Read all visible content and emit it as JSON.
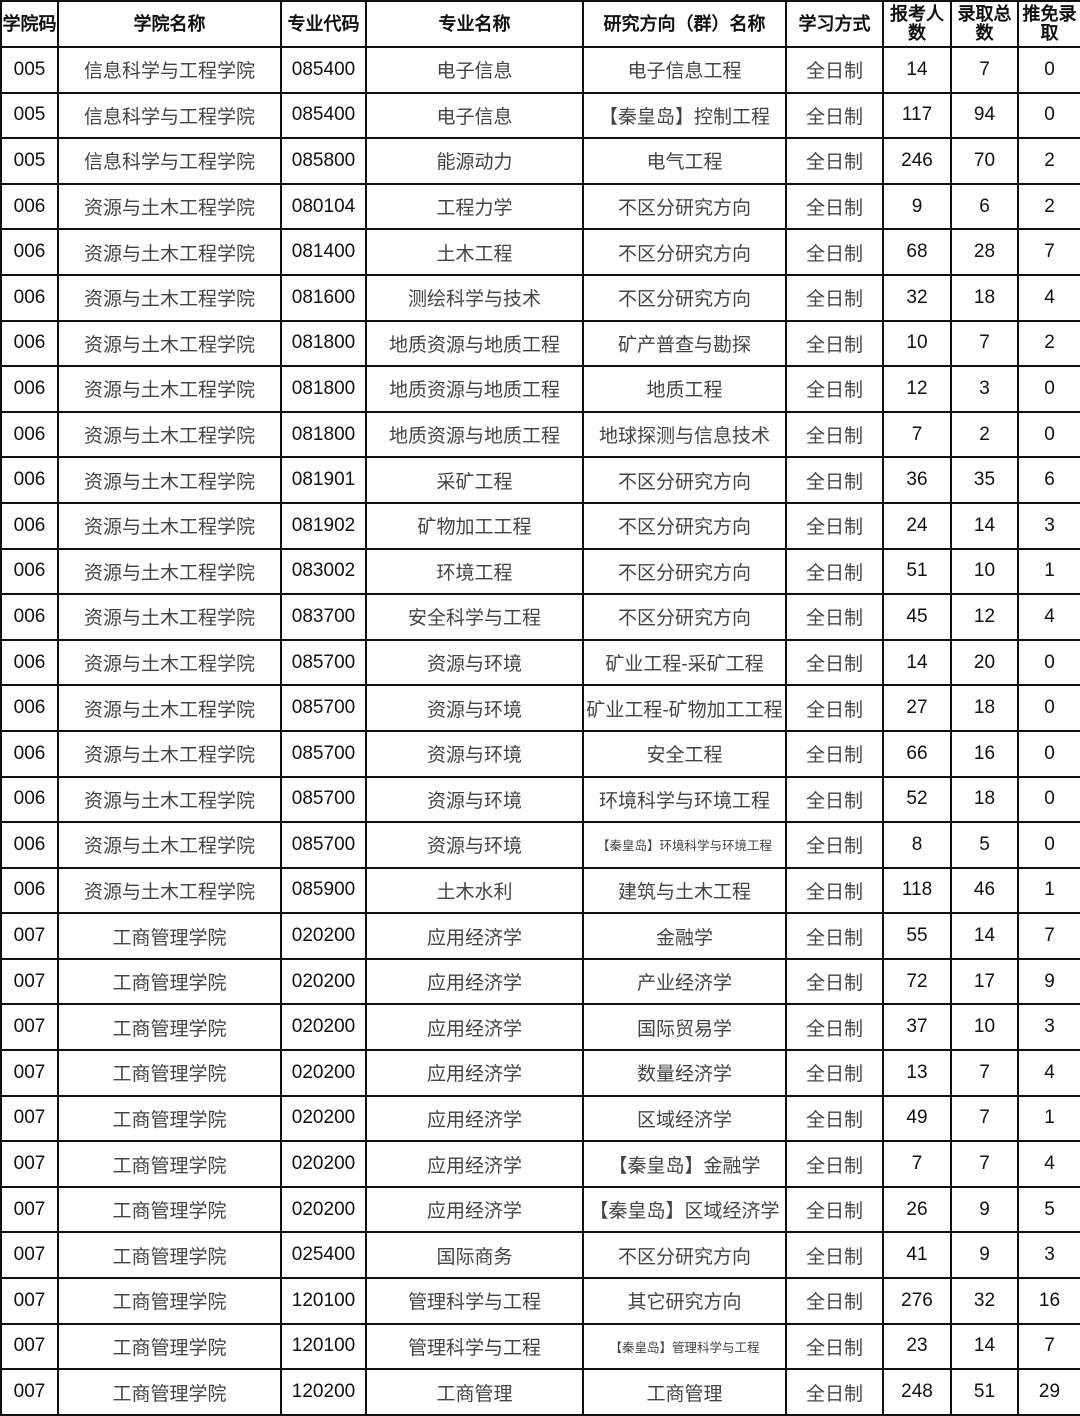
{
  "headers": [
    "学院码",
    "学院名称",
    "专业代码",
    "专业名称",
    "研究方向（群）名称",
    "学习方式",
    "报考人数",
    "录取总数",
    "推免录取"
  ],
  "rows": [
    [
      "005",
      "信息科学与工程学院",
      "085400",
      "电子信息",
      "电子信息工程",
      "全日制",
      "14",
      "7",
      "0"
    ],
    [
      "005",
      "信息科学与工程学院",
      "085400",
      "电子信息",
      "【秦皇岛】控制工程",
      "全日制",
      "117",
      "94",
      "0"
    ],
    [
      "005",
      "信息科学与工程学院",
      "085800",
      "能源动力",
      "电气工程",
      "全日制",
      "246",
      "70",
      "2"
    ],
    [
      "006",
      "资源与土木工程学院",
      "080104",
      "工程力学",
      "不区分研究方向",
      "全日制",
      "9",
      "6",
      "2"
    ],
    [
      "006",
      "资源与土木工程学院",
      "081400",
      "土木工程",
      "不区分研究方向",
      "全日制",
      "68",
      "28",
      "7"
    ],
    [
      "006",
      "资源与土木工程学院",
      "081600",
      "测绘科学与技术",
      "不区分研究方向",
      "全日制",
      "32",
      "18",
      "4"
    ],
    [
      "006",
      "资源与土木工程学院",
      "081800",
      "地质资源与地质工程",
      "矿产普查与勘探",
      "全日制",
      "10",
      "7",
      "2"
    ],
    [
      "006",
      "资源与土木工程学院",
      "081800",
      "地质资源与地质工程",
      "地质工程",
      "全日制",
      "12",
      "3",
      "0"
    ],
    [
      "006",
      "资源与土木工程学院",
      "081800",
      "地质资源与地质工程",
      "地球探测与信息技术",
      "全日制",
      "7",
      "2",
      "0"
    ],
    [
      "006",
      "资源与土木工程学院",
      "081901",
      "采矿工程",
      "不区分研究方向",
      "全日制",
      "36",
      "35",
      "6"
    ],
    [
      "006",
      "资源与土木工程学院",
      "081902",
      "矿物加工工程",
      "不区分研究方向",
      "全日制",
      "24",
      "14",
      "3"
    ],
    [
      "006",
      "资源与土木工程学院",
      "083002",
      "环境工程",
      "不区分研究方向",
      "全日制",
      "51",
      "10",
      "1"
    ],
    [
      "006",
      "资源与土木工程学院",
      "083700",
      "安全科学与工程",
      "不区分研究方向",
      "全日制",
      "45",
      "12",
      "4"
    ],
    [
      "006",
      "资源与土木工程学院",
      "085700",
      "资源与环境",
      "矿业工程-采矿工程",
      "全日制",
      "14",
      "20",
      "0"
    ],
    [
      "006",
      "资源与土木工程学院",
      "085700",
      "资源与环境",
      "矿业工程-矿物加工工程",
      "全日制",
      "27",
      "18",
      "0"
    ],
    [
      "006",
      "资源与土木工程学院",
      "085700",
      "资源与环境",
      "安全工程",
      "全日制",
      "66",
      "16",
      "0"
    ],
    [
      "006",
      "资源与土木工程学院",
      "085700",
      "资源与环境",
      "环境科学与环境工程",
      "全日制",
      "52",
      "18",
      "0"
    ],
    [
      "006",
      "资源与土木工程学院",
      "085700",
      "资源与环境",
      "【秦皇岛】环境科学与环境工程",
      "全日制",
      "8",
      "5",
      "0"
    ],
    [
      "006",
      "资源与土木工程学院",
      "085900",
      "土木水利",
      "建筑与土木工程",
      "全日制",
      "118",
      "46",
      "1"
    ],
    [
      "007",
      "工商管理学院",
      "020200",
      "应用经济学",
      "金融学",
      "全日制",
      "55",
      "14",
      "7"
    ],
    [
      "007",
      "工商管理学院",
      "020200",
      "应用经济学",
      "产业经济学",
      "全日制",
      "72",
      "17",
      "9"
    ],
    [
      "007",
      "工商管理学院",
      "020200",
      "应用经济学",
      "国际贸易学",
      "全日制",
      "37",
      "10",
      "3"
    ],
    [
      "007",
      "工商管理学院",
      "020200",
      "应用经济学",
      "数量经济学",
      "全日制",
      "13",
      "7",
      "4"
    ],
    [
      "007",
      "工商管理学院",
      "020200",
      "应用经济学",
      "区域经济学",
      "全日制",
      "49",
      "7",
      "1"
    ],
    [
      "007",
      "工商管理学院",
      "020200",
      "应用经济学",
      "【秦皇岛】金融学",
      "全日制",
      "7",
      "7",
      "4"
    ],
    [
      "007",
      "工商管理学院",
      "020200",
      "应用经济学",
      "【秦皇岛】区域经济学",
      "全日制",
      "26",
      "9",
      "5"
    ],
    [
      "007",
      "工商管理学院",
      "025400",
      "国际商务",
      "不区分研究方向",
      "全日制",
      "41",
      "9",
      "3"
    ],
    [
      "007",
      "工商管理学院",
      "120100",
      "管理科学与工程",
      "其它研究方向",
      "全日制",
      "276",
      "32",
      "16"
    ],
    [
      "007",
      "工商管理学院",
      "120100",
      "管理科学与工程",
      "【秦皇岛】管理科学与工程",
      "全日制",
      "23",
      "14",
      "7"
    ],
    [
      "007",
      "工商管理学院",
      "120200",
      "工商管理",
      "工商管理",
      "全日制",
      "248",
      "51",
      "29"
    ]
  ]
}
